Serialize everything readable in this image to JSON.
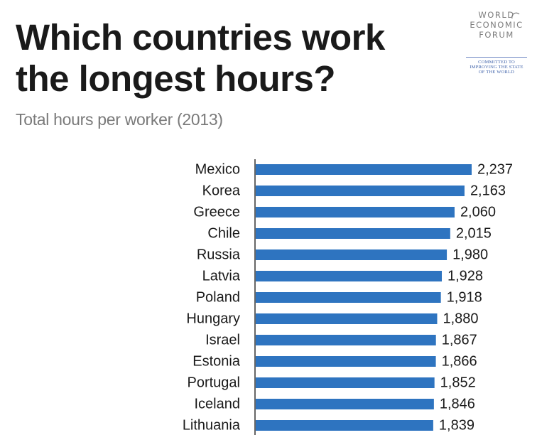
{
  "title": "Which countries work the longest hours?",
  "subtitle": "Total hours per worker (2013)",
  "logo": {
    "lines": [
      "WORLD",
      "ECONOMIC",
      "FORUM"
    ],
    "tagline": [
      "COMMITTED TO",
      "IMPROVING THE STATE",
      "OF THE WORLD"
    ]
  },
  "colors": {
    "bar": "#2e74c0",
    "title": "#1a1a1a",
    "subtitle": "#7a7a7a",
    "axis": "#333333"
  },
  "chart_data": {
    "type": "bar",
    "orientation": "horizontal",
    "title": "Which countries work the longest hours?",
    "subtitle": "Total hours per worker (2013)",
    "categories": [
      "Mexico",
      "Korea",
      "Greece",
      "Chile",
      "Russia",
      "Latvia",
      "Poland",
      "Hungary",
      "Israel",
      "Estonia",
      "Portugal",
      "Iceland",
      "Lithuania"
    ],
    "values": [
      2237,
      2163,
      2060,
      2015,
      1980,
      1928,
      1918,
      1880,
      1867,
      1866,
      1852,
      1846,
      1839
    ],
    "value_labels": [
      "2,237",
      "2,163",
      "2,060",
      "2,015",
      "1,980",
      "1,928",
      "1,918",
      "1,880",
      "1,867",
      "1,866",
      "1,852",
      "1,846",
      "1,839"
    ],
    "xlim": [
      0,
      2237
    ],
    "grid": false,
    "legend": "none"
  }
}
